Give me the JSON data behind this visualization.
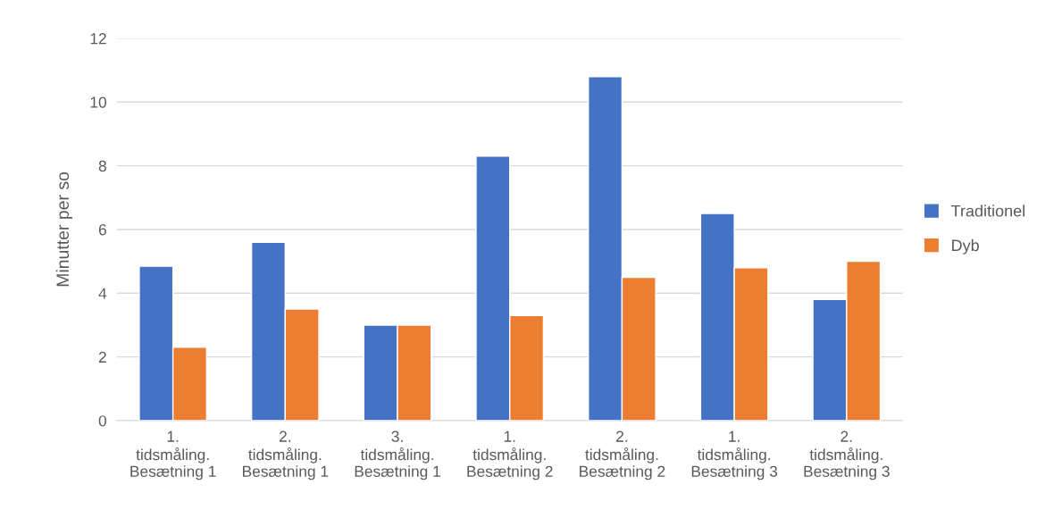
{
  "chart_data": {
    "type": "bar",
    "ylabel": "Minutter per so",
    "categories": [
      "1.\ntidsmåling.\nBesætning 1",
      "2.\ntidsmåling.\nBesætning 1",
      "3.\ntidsmåling.\nBesætning 1",
      "1.\ntidsmåling.\nBesætning 2",
      "2.\ntidsmåling.\nBesætning 2",
      "1.\ntidsmåling.\nBesætning 3",
      "2.\ntidsmåling.\nBesætning 3"
    ],
    "series": [
      {
        "name": "Traditionel",
        "color": "#4472c4",
        "values": [
          4.85,
          5.6,
          3.0,
          8.3,
          10.8,
          6.5,
          3.8
        ]
      },
      {
        "name": "Dyb",
        "color": "#ed7d31",
        "values": [
          2.3,
          3.5,
          3.0,
          3.3,
          4.5,
          4.8,
          5.0
        ]
      }
    ],
    "ylim": [
      0,
      12
    ],
    "yticks": [
      0,
      2,
      4,
      6,
      8,
      10,
      12
    ],
    "grid": "y",
    "legend": "right"
  }
}
